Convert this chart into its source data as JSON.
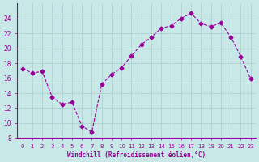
{
  "x": [
    0,
    1,
    2,
    3,
    4,
    5,
    6,
    7,
    8,
    9,
    10,
    11,
    12,
    13,
    14,
    15,
    16,
    17,
    18,
    19,
    20,
    21,
    22,
    23
  ],
  "y": [
    17.3,
    16.7,
    16.9,
    13.5,
    12.5,
    12.8,
    9.6,
    8.8,
    15.2,
    16.5,
    17.4,
    19.0,
    20.5,
    21.5,
    22.7,
    23.0,
    24.0,
    24.7,
    23.3,
    22.9,
    23.4,
    21.5,
    18.9,
    15.9
  ],
  "line_color": "#990099",
  "marker_color": "#990099",
  "bg_color": "#c8e8e8",
  "grid_color": "#aacccc",
  "axis_color": "#990099",
  "tick_color": "#990099",
  "xlabel": "Windchill (Refroidissement éolien,°C)",
  "xlim": [
    -0.5,
    23.5
  ],
  "ylim": [
    8,
    26
  ],
  "yticks": [
    8,
    10,
    12,
    14,
    16,
    18,
    20,
    22,
    24
  ],
  "xticks": [
    0,
    1,
    2,
    3,
    4,
    5,
    6,
    7,
    8,
    9,
    10,
    11,
    12,
    13,
    14,
    15,
    16,
    17,
    18,
    19,
    20,
    21,
    22,
    23
  ]
}
